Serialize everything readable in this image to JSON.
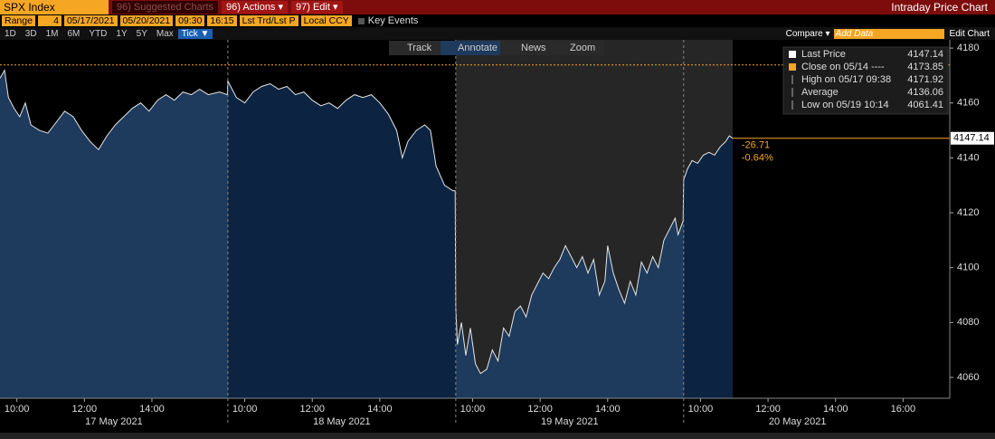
{
  "toolbar": {
    "ticker": "SPX Index",
    "suggested": "96) Suggested Charts",
    "actions": "96) Actions ▾",
    "edit": "97) Edit ▾",
    "title": "Intraday Price Chart"
  },
  "range_bar": {
    "label": "Range",
    "periods": "4",
    "start_date": "05/17/2021",
    "end_date": "05/20/2021",
    "start_time": "09:30",
    "end_time": "16:15",
    "price_field": "Lst Trd/Lst P",
    "currency": "Local CCY",
    "key_events": "Key Events"
  },
  "period_buttons": [
    "1D",
    "3D",
    "1M",
    "6M",
    "YTD",
    "1Y",
    "5Y",
    "Max"
  ],
  "frequency": "Tick ▼",
  "compare": "Compare ▾",
  "add_data": "Add Data",
  "edit_chart": "Edit Chart",
  "chart_tools": [
    "Track",
    "Annotate",
    "News",
    "Zoom"
  ],
  "chart_data": {
    "type": "line",
    "x": [
      0,
      8,
      15,
      25,
      35,
      45,
      55,
      70,
      85,
      100,
      115,
      130,
      145,
      160,
      175,
      190,
      205,
      220,
      235,
      250,
      265,
      280,
      295,
      310,
      325,
      340,
      355,
      370,
      390,
      404,
      405,
      410,
      420,
      435,
      450,
      465,
      480,
      495,
      510,
      525,
      540,
      555,
      570,
      585,
      600,
      615,
      630,
      645,
      660,
      675,
      690,
      705,
      715,
      725,
      740,
      755,
      765,
      775,
      790,
      805,
      809,
      810,
      813,
      820,
      828,
      836,
      845,
      854,
      865,
      875,
      885,
      895,
      905,
      915,
      925,
      935,
      945,
      955,
      965,
      975,
      985,
      995,
      1005,
      1015,
      1025,
      1035,
      1045,
      1055,
      1065,
      1075,
      1080,
      1090,
      1100,
      1110,
      1120,
      1130,
      1140,
      1150,
      1160,
      1170,
      1180,
      1190,
      1200,
      1205,
      1214,
      1215,
      1222,
      1230,
      1240,
      1250,
      1260,
      1270,
      1280,
      1290,
      1296,
      1302
    ],
    "values": [
      4169,
      4171.92,
      4162,
      4158,
      4155,
      4160,
      4152,
      4150,
      4149,
      4153,
      4157,
      4155,
      4150,
      4146,
      4143,
      4148,
      4152,
      4155,
      4158,
      4160,
      4157,
      4161,
      4163,
      4161,
      4164,
      4163,
      4165,
      4163,
      4164,
      4163,
      4168,
      4166,
      4162,
      4160,
      4164,
      4166,
      4167,
      4165,
      4166,
      4163,
      4164,
      4161,
      4159,
      4160,
      4158,
      4161,
      4163,
      4162,
      4163,
      4160,
      4156,
      4150,
      4140,
      4146,
      4150,
      4152,
      4150,
      4137,
      4130,
      4128,
      4128,
      4085,
      4072,
      4080,
      4068,
      4078,
      4065,
      4061.41,
      4063,
      4070,
      4066,
      4078,
      4075,
      4084,
      4086,
      4082,
      4090,
      4094,
      4098,
      4096,
      4100,
      4103,
      4108,
      4104,
      4100,
      4104,
      4098,
      4103,
      4090,
      4095,
      4108,
      4098,
      4092,
      4087,
      4095,
      4090,
      4102,
      4098,
      4104,
      4100,
      4110,
      4114,
      4118,
      4112,
      4117,
      4132,
      4136,
      4139,
      4138,
      4141,
      4142,
      4141,
      4144,
      4146,
      4148,
      4147.14
    ],
    "color": "#e6e6e6",
    "fill_colors": [
      "#1e3a5c",
      "#0c2442"
    ],
    "xlim": [
      0,
      1688
    ],
    "ylim": [
      4052.4,
      4183
    ],
    "yticks": [
      4060,
      4080,
      4100,
      4120,
      4140,
      4160,
      4180
    ],
    "xticks": [
      {
        "value": 30,
        "label": "10:00"
      },
      {
        "value": 150,
        "label": "12:00"
      },
      {
        "value": 270,
        "label": "14:00"
      },
      {
        "value": 435,
        "label": "10:00"
      },
      {
        "value": 555,
        "label": "12:00"
      },
      {
        "value": 675,
        "label": "14:00"
      },
      {
        "value": 840,
        "label": "10:00"
      },
      {
        "value": 960,
        "label": "12:00"
      },
      {
        "value": 1080,
        "label": "14:00"
      },
      {
        "value": 1245,
        "label": "10:00"
      },
      {
        "value": 1365,
        "label": "12:00"
      },
      {
        "value": 1485,
        "label": "14:00"
      },
      {
        "value": 1605,
        "label": "16:00"
      }
    ],
    "xgroups": [
      {
        "value": 0,
        "label": "17 May 2021"
      },
      {
        "value": 405,
        "label": "18 May 2021"
      },
      {
        "value": 810,
        "label": "19 May 2021"
      },
      {
        "value": 1215,
        "label": "20 May 2021"
      }
    ],
    "stats": [
      {
        "label": "Last Price",
        "value": 4147.14
      },
      {
        "label": "Close on 05/14 ----",
        "value": 4173.85
      },
      {
        "label": "High on 05/17 09:38",
        "value": 4171.92
      },
      {
        "label": "Average",
        "value": 4136.06
      },
      {
        "label": "Low on 05/19 10:14",
        "value": 4061.41
      }
    ],
    "change": -26.71,
    "change_pct": "-0.64%"
  }
}
